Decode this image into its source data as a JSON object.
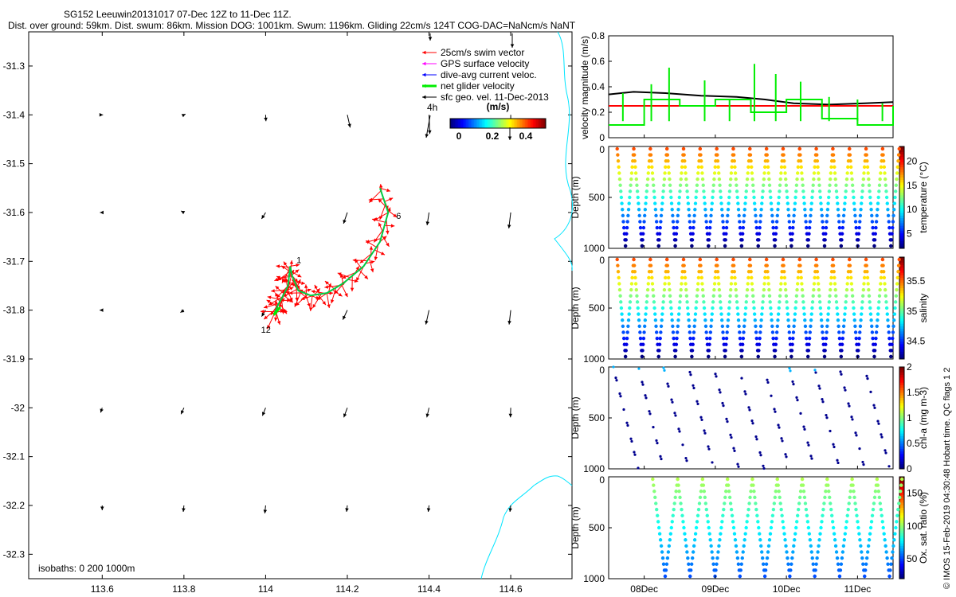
{
  "header": {
    "title_line1": "SG152 Leeuwin20131017 07-Dec 12Z to 11-Dec 11Z.",
    "title_line2": "Dist. over ground: 59km. Dist. swum: 86km. Mission DOG: 1001km. Swum: 1196km. Gliding 22cm/s 124T COG-DAC=NaNcm/s NaNT"
  },
  "map": {
    "lat_ticks": [
      "-31.3",
      "-31.4",
      "-31.5",
      "-31.6",
      "-31.7",
      "-31.8",
      "-31.9",
      "-32",
      "-32.1",
      "-32.2",
      "-32.3"
    ],
    "lon_ticks": [
      "113.6",
      "113.8",
      "114",
      "114.2",
      "114.4",
      "114.6"
    ],
    "legend": {
      "items": [
        {
          "label": "25cm/s swim vector",
          "color": "#ff0000"
        },
        {
          "label": "GPS surface velocity",
          "color": "#ff00ff"
        },
        {
          "label": "dive-avg current veloc.",
          "color": "#0000ff"
        },
        {
          "label": "net glider velocity",
          "color": "#00ee00"
        },
        {
          "label": "sfc geo. vel. 11-Dec-2013",
          "color": "#000000"
        }
      ],
      "ref_label": "4h",
      "colorbar_unit": "(m/s)",
      "colorbar_ticks": [
        "0",
        "0.2",
        "0.4"
      ]
    },
    "track_labels": {
      "start": "1",
      "mid": "6",
      "end": "12"
    },
    "isobath_label": "isobaths: 0   200  1000m",
    "coast_color": "#00e5ff"
  },
  "panels": {
    "velocity": {
      "ylabel": "velocity magnitude (m/s)",
      "yticks": [
        "0",
        "0.2",
        "0.4",
        "0.6",
        "0.8"
      ]
    },
    "temperature": {
      "ylabel": "Depth (m)",
      "cb_label": "temperature (°C)",
      "cb_ticks": [
        "5",
        "10",
        "15",
        "20"
      ],
      "yticks": [
        "0",
        "500",
        "1000"
      ]
    },
    "salinity": {
      "ylabel": "Depth (m)",
      "cb_label": "salinity",
      "cb_ticks": [
        "34.5",
        "35",
        "35.5"
      ],
      "yticks": [
        "0",
        "500",
        "1000"
      ]
    },
    "chla": {
      "ylabel": "Depth (m)",
      "cb_label": "chl-a (mg m-3)",
      "cb_ticks": [
        "0",
        "0.5",
        "1",
        "1.5",
        "2"
      ],
      "yticks": [
        "0",
        "500",
        "1000"
      ]
    },
    "oxygen": {
      "ylabel": "Depth (m)",
      "cb_label": "Ox. sat. ratio (%)",
      "cb_ticks": [
        "50",
        "100",
        "150"
      ],
      "yticks": [
        "0",
        "500",
        "1000"
      ]
    },
    "date_ticks": [
      "08Dec",
      "09Dec",
      "10Dec",
      "11Dec"
    ],
    "side_note": "© IMOS 15-Feb-2019 04:30:48 Hobart time. QC flags 1  2"
  },
  "chart_data": [
    {
      "type": "scatter",
      "title": "SG152 Leeuwin20131017 07-Dec 12Z to 11-Dec 11Z.",
      "xlim": [
        113.42,
        114.75
      ],
      "ylim": [
        -32.35,
        -31.23
      ],
      "geo_velocity_grid": {
        "lon": [
          113.6,
          113.8,
          114.0,
          114.2,
          114.4,
          114.6
        ],
        "lat": [
          -31.4,
          -31.6,
          -31.8,
          -32.0,
          -32.2
        ],
        "u": [
          [
            0.005,
            0.01,
            0.002,
            0.018,
            0.005,
            0
          ],
          [
            -0.014,
            -0.018,
            -0.025,
            -0.024,
            -0.012,
            -0.012
          ],
          [
            -0.016,
            -0.022,
            -0.025,
            -0.028,
            -0.02,
            -0.01
          ],
          [
            -0.01,
            -0.018,
            -0.02,
            -0.022,
            -0.014,
            -0.002
          ],
          [
            0,
            -0.004,
            -0.005,
            -0.005,
            -0.005,
            -0.005
          ]
        ],
        "v": [
          [
            0,
            0.005,
            -0.04,
            -0.08,
            -0.12,
            -0.05
          ],
          [
            0,
            0.01,
            -0.04,
            -0.07,
            -0.08,
            -0.1
          ],
          [
            0,
            -0.015,
            -0.04,
            -0.06,
            -0.09,
            -0.09
          ],
          [
            -0.03,
            -0.04,
            -0.05,
            -0.06,
            -0.06,
            -0.06
          ],
          [
            -0.03,
            -0.04,
            -0.05,
            -0.04,
            -0.04,
            -0.04
          ]
        ]
      },
      "glider_track": {
        "lon": [
          114.28,
          114.3,
          114.28,
          114.24,
          114.19,
          114.15,
          114.11,
          114.08,
          114.065,
          114.06,
          114.055,
          114.04,
          114.03,
          114.02
        ],
        "lat": [
          -31.55,
          -31.6,
          -31.66,
          -31.71,
          -31.745,
          -31.765,
          -31.77,
          -31.76,
          -31.73,
          -31.71,
          -31.75,
          -31.775,
          -31.79,
          -31.81
        ]
      }
    },
    {
      "type": "line",
      "ylabel": "velocity magnitude (m/s)",
      "ylim": [
        0,
        0.8
      ],
      "x_date_ticks": [
        "08Dec",
        "09Dec",
        "10Dec",
        "11Dec"
      ],
      "series": [
        {
          "color": "#000000",
          "x": [
            0,
            0.35,
            0.8,
            1.3,
            1.8,
            2.2,
            2.6,
            3.1,
            3.6,
            4.0
          ],
          "values": [
            0.34,
            0.36,
            0.35,
            0.33,
            0.32,
            0.3,
            0.27,
            0.26,
            0.27,
            0.28
          ]
        },
        {
          "color": "#ff0000",
          "x": [
            0,
            4.0
          ],
          "values": [
            0.25,
            0.25
          ]
        },
        {
          "color": "#00ee00",
          "x": [
            0,
            0.5,
            1.0,
            1.5,
            2.0,
            2.5,
            3.0,
            3.5,
            4.0
          ],
          "values": [
            0.1,
            0.3,
            0.25,
            0.3,
            0.2,
            0.3,
            0.15,
            0.1,
            0.25
          ]
        }
      ]
    },
    {
      "type": "scatter",
      "panels": [
        "temperature",
        "salinity",
        "chl-a",
        "oxygen"
      ],
      "ylim": [
        1000,
        0
      ],
      "temperature_range": [
        2,
        23
      ],
      "salinity_range": [
        34.2,
        35.9
      ],
      "chla_range": [
        0,
        2
      ],
      "oxygen_range": [
        20,
        175
      ],
      "dive_count_temperature": 17,
      "dive_count_oxygen": 10
    }
  ]
}
